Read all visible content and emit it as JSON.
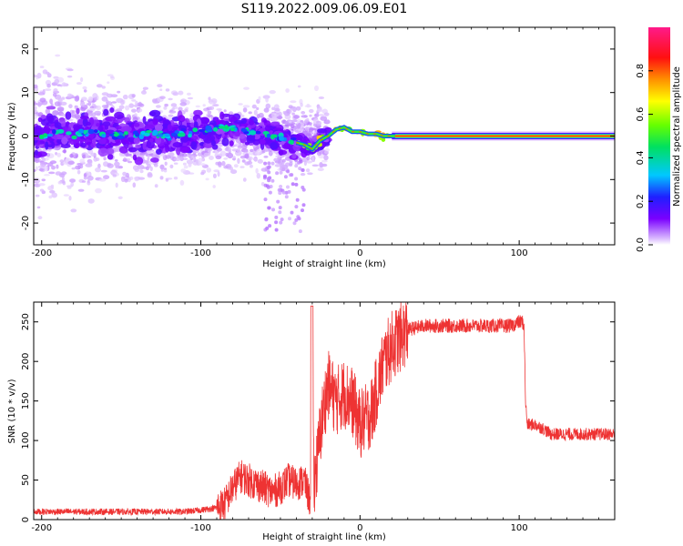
{
  "title": "S119.2022.009.06.09.E01",
  "chart_data": [
    {
      "type": "heatmap",
      "xlabel": "Height of straight line (km)",
      "ylabel": "Frequency (Hz)",
      "xlim": [
        -205,
        160
      ],
      "ylim": [
        -25,
        25
      ],
      "xticks": [
        -200,
        -100,
        0,
        100
      ],
      "yticks": [
        -20,
        -10,
        0,
        10,
        20
      ],
      "colorbar": {
        "label": "Normalized spectral amplitude",
        "range": [
          0,
          1
        ],
        "ticks": [
          0.0,
          0.2,
          0.4,
          0.6,
          0.8
        ]
      },
      "ridge": {
        "x": [
          -200,
          -190,
          -180,
          -170,
          -160,
          -150,
          -140,
          -130,
          -120,
          -110,
          -100,
          -90,
          -80,
          -70,
          -60,
          -50,
          -45,
          -40,
          -35,
          -30,
          -25,
          -20,
          -15,
          -10,
          -5,
          0,
          5,
          10,
          15,
          20,
          30,
          50,
          100,
          160
        ],
        "y": [
          0,
          1,
          0.5,
          1,
          0,
          0.5,
          0,
          1,
          0,
          0.5,
          1,
          1.5,
          2,
          1,
          0.5,
          -0.5,
          -1,
          -1.5,
          -2,
          -3,
          -1,
          0,
          1.5,
          2,
          1,
          1,
          0.5,
          0.5,
          0,
          0,
          0,
          0,
          0,
          0
        ]
      }
    },
    {
      "type": "line",
      "xlabel": "Height of straight line (km)",
      "ylabel": "SNR (10 * v/v)",
      "xlim": [
        -205,
        160
      ],
      "ylim": [
        0,
        275
      ],
      "xticks": [
        -200,
        -100,
        0,
        100
      ],
      "yticks": [
        0,
        50,
        100,
        150,
        200,
        250
      ],
      "color": "#ee3333",
      "series": [
        {
          "x": [
            -205,
            -190,
            -170,
            -150,
            -130,
            -110,
            -100,
            -90,
            -85,
            -80,
            -75,
            -70,
            -65,
            -60,
            -55,
            -50,
            -45,
            -40,
            -35,
            -31,
            -30,
            -29,
            -27,
            -25,
            -22,
            -20,
            -15,
            -10,
            -5,
            0,
            5,
            8,
            10,
            15,
            20,
            25,
            30,
            40,
            50,
            60,
            70,
            80,
            90,
            95,
            100,
            102,
            103,
            104,
            105,
            110,
            115,
            120,
            130,
            140,
            150,
            160
          ],
          "y": [
            10,
            10,
            10,
            10,
            10,
            10,
            12,
            15,
            20,
            40,
            55,
            50,
            45,
            40,
            35,
            40,
            50,
            45,
            50,
            20,
            270,
            50,
            70,
            110,
            150,
            170,
            150,
            160,
            150,
            120,
            130,
            140,
            160,
            200,
            220,
            230,
            240,
            245,
            245,
            245,
            245,
            245,
            245,
            245,
            250,
            250,
            245,
            150,
            120,
            120,
            115,
            108,
            108,
            108,
            108,
            108
          ]
        }
      ]
    }
  ]
}
